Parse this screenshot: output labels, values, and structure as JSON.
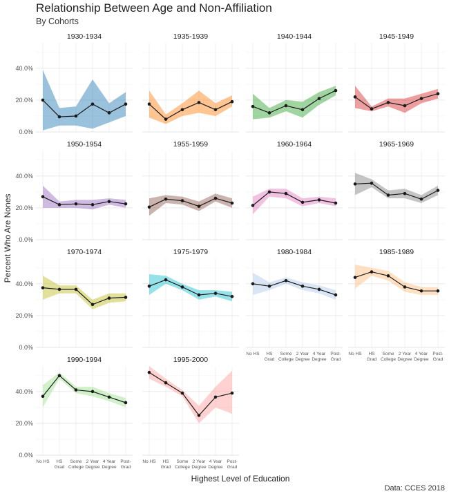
{
  "title": "Relationship Between Age and Non-Affiliation",
  "subtitle": "By Cohorts",
  "caption": "Data: CCES 2018",
  "chart_data": {
    "type": "line",
    "xlabel": "Highest Level of Education",
    "ylabel": "Percent Who Are Nones",
    "categories": [
      [
        "No HS"
      ],
      [
        "HS",
        "Grad"
      ],
      [
        "Some",
        "College"
      ],
      [
        "2 Year",
        "Degree"
      ],
      [
        "4 Year",
        "Degree"
      ],
      [
        "Post-",
        "Grad"
      ]
    ],
    "y_ticks": [
      "0.0%",
      "20.0%",
      "40.0%"
    ],
    "ylim": [
      0,
      0.56
    ],
    "grid": true,
    "legend": "none",
    "panels": [
      {
        "name": "1930-1934",
        "color": "#1f77b4",
        "values": [
          0.2,
          0.095,
          0.1,
          0.175,
          0.12,
          0.175
        ],
        "lower": [
          0.01,
          0.04,
          0.04,
          0.02,
          0.06,
          0.1
        ],
        "upper": [
          0.39,
          0.15,
          0.16,
          0.33,
          0.18,
          0.25
        ]
      },
      {
        "name": "1935-1939",
        "color": "#ff7f0e",
        "values": [
          0.175,
          0.08,
          0.14,
          0.185,
          0.14,
          0.19
        ],
        "lower": [
          0.09,
          0.05,
          0.1,
          0.12,
          0.1,
          0.16
        ],
        "upper": [
          0.26,
          0.11,
          0.18,
          0.26,
          0.18,
          0.23
        ]
      },
      {
        "name": "1940-1944",
        "color": "#2ca02c",
        "values": [
          0.16,
          0.12,
          0.165,
          0.14,
          0.21,
          0.26
        ],
        "lower": [
          0.08,
          0.09,
          0.13,
          0.09,
          0.17,
          0.23
        ],
        "upper": [
          0.24,
          0.15,
          0.2,
          0.19,
          0.25,
          0.29
        ]
      },
      {
        "name": "1945-1949",
        "color": "#d62728",
        "values": [
          0.22,
          0.145,
          0.185,
          0.165,
          0.21,
          0.24
        ],
        "lower": [
          0.15,
          0.13,
          0.16,
          0.12,
          0.18,
          0.21
        ],
        "upper": [
          0.29,
          0.16,
          0.21,
          0.21,
          0.24,
          0.27
        ]
      },
      {
        "name": "1950-1954",
        "color": "#9467bd",
        "values": [
          0.27,
          0.22,
          0.225,
          0.22,
          0.24,
          0.225
        ],
        "lower": [
          0.2,
          0.2,
          0.2,
          0.19,
          0.22,
          0.2
        ],
        "upper": [
          0.34,
          0.24,
          0.25,
          0.25,
          0.26,
          0.25
        ]
      },
      {
        "name": "1955-1959",
        "color": "#8c564b",
        "values": [
          0.205,
          0.255,
          0.245,
          0.21,
          0.26,
          0.23
        ],
        "lower": [
          0.15,
          0.23,
          0.22,
          0.18,
          0.24,
          0.2
        ],
        "upper": [
          0.26,
          0.28,
          0.27,
          0.24,
          0.29,
          0.26
        ]
      },
      {
        "name": "1960-1964",
        "color": "#e377c2",
        "values": [
          0.215,
          0.3,
          0.29,
          0.235,
          0.25,
          0.23
        ],
        "lower": [
          0.16,
          0.27,
          0.26,
          0.21,
          0.23,
          0.21
        ],
        "upper": [
          0.27,
          0.32,
          0.32,
          0.26,
          0.27,
          0.26
        ]
      },
      {
        "name": "1965-1969",
        "color": "#7f7f7f",
        "values": [
          0.35,
          0.355,
          0.28,
          0.29,
          0.255,
          0.31
        ],
        "lower": [
          0.28,
          0.33,
          0.26,
          0.26,
          0.23,
          0.28
        ],
        "upper": [
          0.42,
          0.38,
          0.31,
          0.32,
          0.28,
          0.34
        ]
      },
      {
        "name": "1970-1974",
        "color": "#bcbd22",
        "values": [
          0.375,
          0.365,
          0.365,
          0.27,
          0.31,
          0.315
        ],
        "lower": [
          0.3,
          0.34,
          0.34,
          0.24,
          0.28,
          0.29
        ],
        "upper": [
          0.45,
          0.39,
          0.39,
          0.3,
          0.34,
          0.34
        ]
      },
      {
        "name": "1975-1979",
        "color": "#17becf",
        "values": [
          0.385,
          0.425,
          0.38,
          0.33,
          0.34,
          0.32
        ],
        "lower": [
          0.33,
          0.4,
          0.36,
          0.3,
          0.32,
          0.29
        ],
        "upper": [
          0.46,
          0.45,
          0.4,
          0.36,
          0.36,
          0.35
        ]
      },
      {
        "name": "1980-1984",
        "color": "#aec7e8",
        "values": [
          0.4,
          0.385,
          0.42,
          0.385,
          0.365,
          0.33
        ],
        "lower": [
          0.33,
          0.36,
          0.4,
          0.36,
          0.34,
          0.3
        ],
        "upper": [
          0.47,
          0.41,
          0.44,
          0.41,
          0.39,
          0.36
        ]
      },
      {
        "name": "1985-1989",
        "color": "#ffbb78",
        "values": [
          0.44,
          0.475,
          0.45,
          0.38,
          0.355,
          0.355
        ],
        "lower": [
          0.37,
          0.45,
          0.42,
          0.35,
          0.33,
          0.33
        ],
        "upper": [
          0.52,
          0.5,
          0.48,
          0.41,
          0.38,
          0.38
        ]
      },
      {
        "name": "1990-1994",
        "color": "#98df8a",
        "values": [
          0.37,
          0.5,
          0.41,
          0.4,
          0.365,
          0.33
        ],
        "lower": [
          0.3,
          0.48,
          0.39,
          0.37,
          0.34,
          0.3
        ],
        "upper": [
          0.44,
          0.52,
          0.43,
          0.43,
          0.39,
          0.36
        ]
      },
      {
        "name": "1995-2000",
        "color": "#ff9896",
        "values": [
          0.52,
          0.455,
          0.39,
          0.25,
          0.365,
          0.39
        ],
        "lower": [
          0.48,
          0.43,
          0.37,
          0.2,
          0.3,
          0.26
        ],
        "upper": [
          0.56,
          0.48,
          0.41,
          0.31,
          0.43,
          0.53
        ]
      }
    ]
  }
}
